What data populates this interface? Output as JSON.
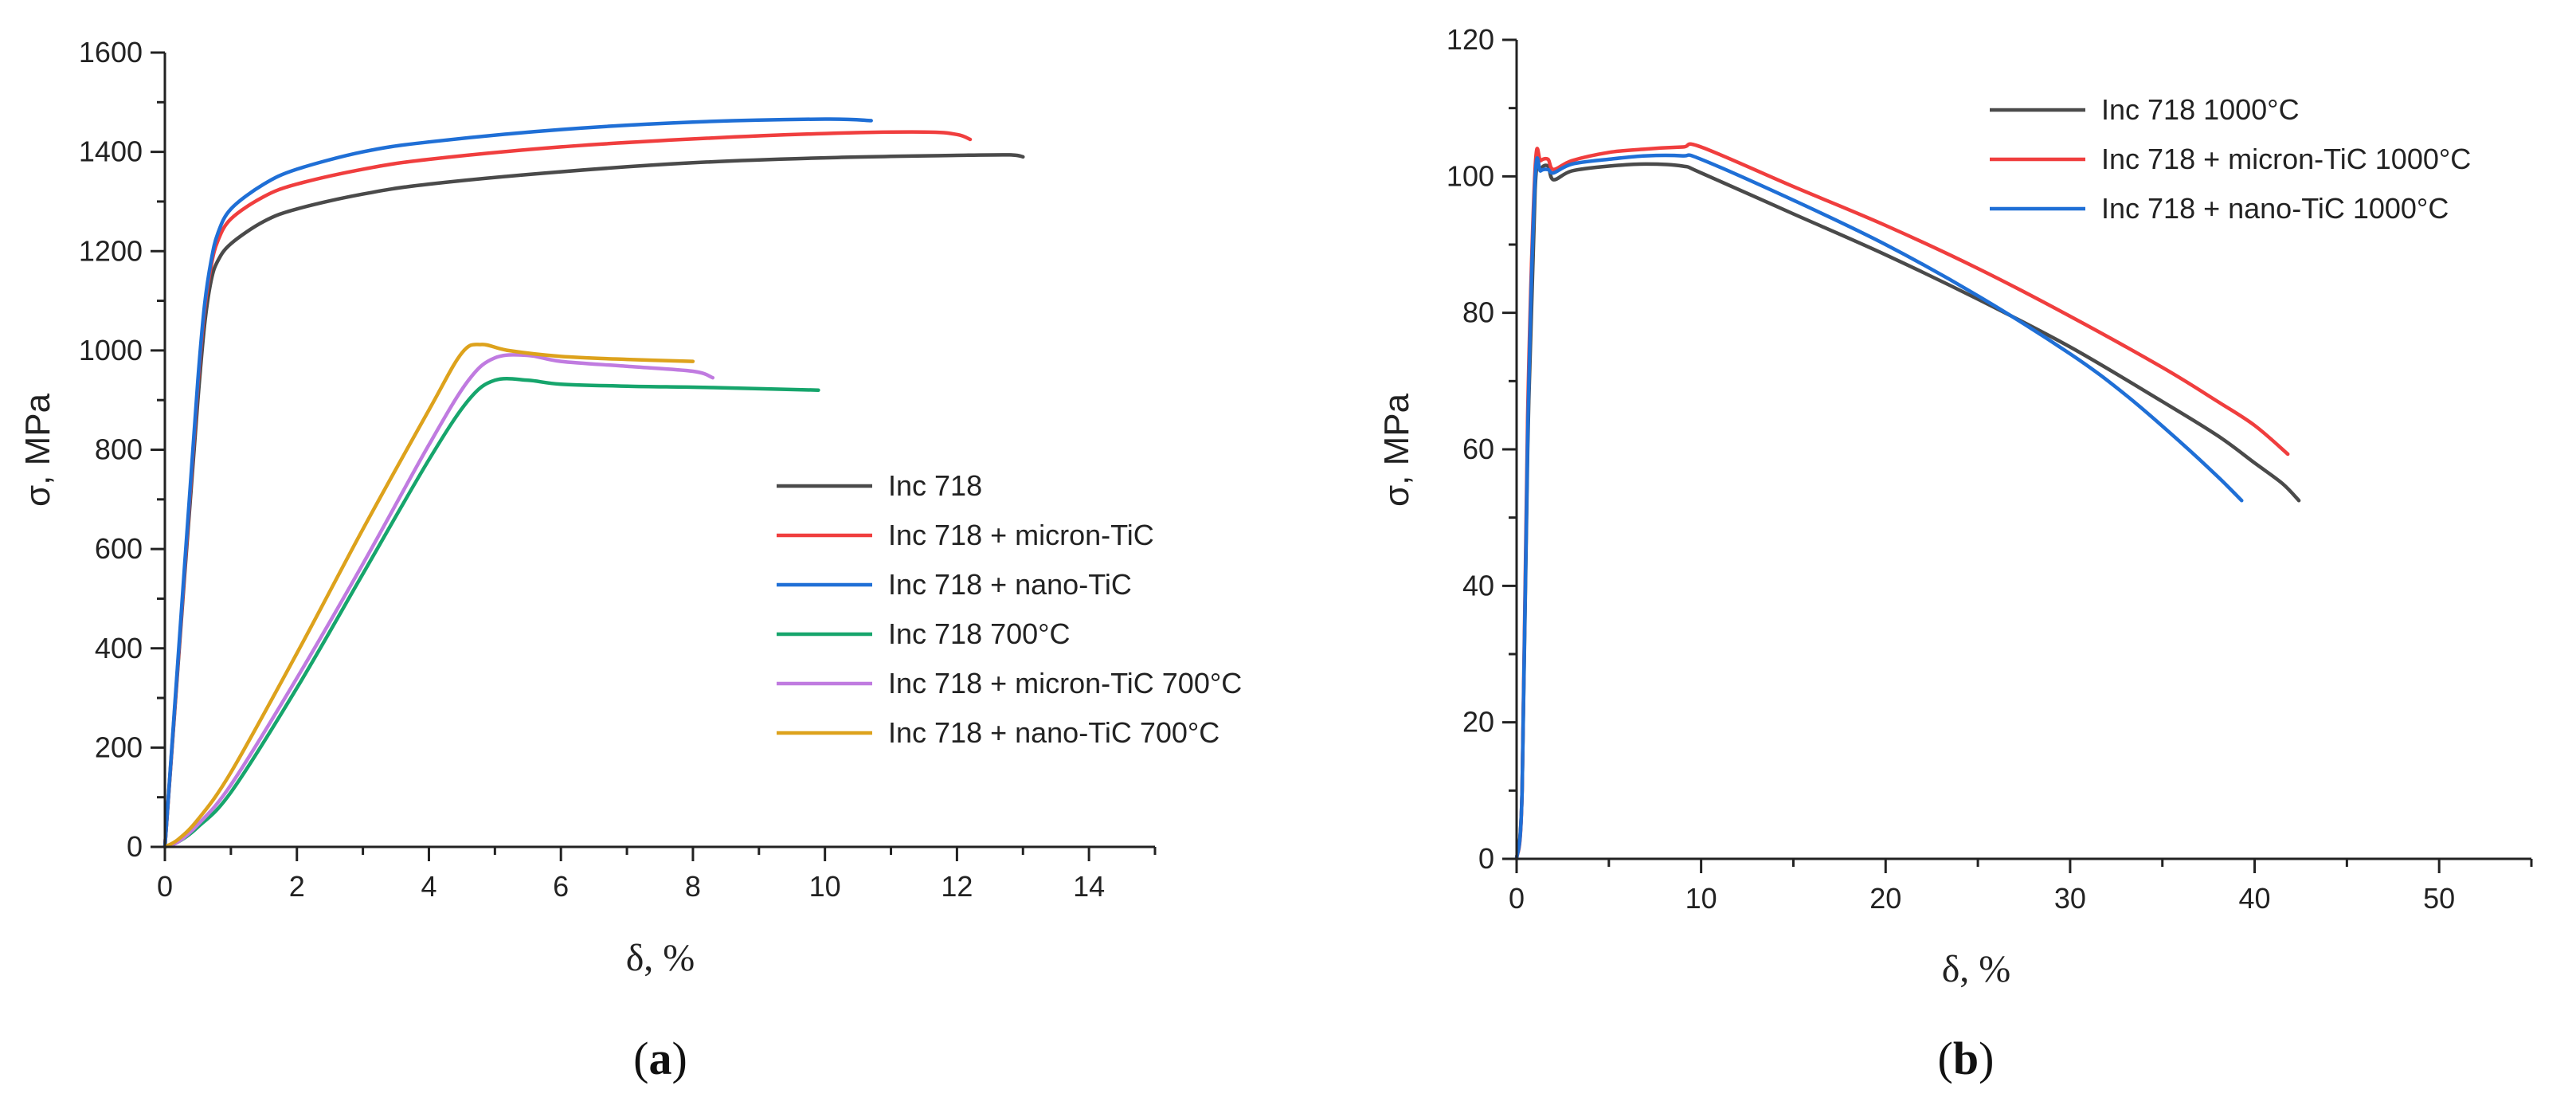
{
  "chart_data": [
    {
      "panel": "a",
      "type": "line",
      "title": "",
      "xlabel": "δ, %",
      "ylabel": "σ, MPa",
      "xlim": [
        0,
        15
      ],
      "ylim": [
        0,
        1600
      ],
      "xticks": [
        0,
        2,
        4,
        6,
        8,
        10,
        12,
        14
      ],
      "yticks": [
        0,
        200,
        400,
        600,
        800,
        1000,
        1200,
        1400,
        1600
      ],
      "legend_position": "center-right",
      "panel_label": {
        "open": "(",
        "letter": "a",
        "close": ")"
      },
      "series": [
        {
          "name": "Inc 718",
          "color": "#4a4a4a",
          "x": [
            0,
            0.3,
            0.5,
            0.6,
            0.7,
            0.8,
            1.0,
            1.5,
            2,
            3,
            4,
            6,
            8,
            10,
            12,
            12.8,
            13.0
          ],
          "y": [
            0,
            550,
            900,
            1050,
            1140,
            1180,
            1215,
            1260,
            1285,
            1315,
            1335,
            1360,
            1378,
            1388,
            1393,
            1394,
            1390
          ]
        },
        {
          "name": "Inc 718 + micron-TiC",
          "color": "#f03e3e",
          "x": [
            0,
            0.3,
            0.5,
            0.6,
            0.7,
            0.8,
            1.0,
            1.5,
            2,
            3,
            4,
            6,
            8,
            10,
            11.5,
            12.0,
            12.2
          ],
          "y": [
            0,
            560,
            930,
            1080,
            1170,
            1220,
            1265,
            1310,
            1335,
            1365,
            1385,
            1410,
            1426,
            1437,
            1440,
            1435,
            1425
          ]
        },
        {
          "name": "Inc 718 + nano-TiC",
          "color": "#1f6fd6",
          "x": [
            0,
            0.3,
            0.5,
            0.6,
            0.7,
            0.8,
            1.0,
            1.5,
            2,
            3,
            4,
            6,
            8,
            10,
            10.7
          ],
          "y": [
            0,
            570,
            940,
            1090,
            1180,
            1235,
            1285,
            1335,
            1365,
            1400,
            1420,
            1445,
            1460,
            1466,
            1463
          ]
        },
        {
          "name": "Inc 718 700°C",
          "color": "#16a56c",
          "x": [
            0,
            0.2,
            0.5,
            1.0,
            2.0,
            3.0,
            4.0,
            4.6,
            5.0,
            5.5,
            6.0,
            7.0,
            8.0,
            9.0,
            9.9
          ],
          "y": [
            0,
            10,
            40,
            110,
            320,
            550,
            780,
            900,
            940,
            940,
            932,
            928,
            926,
            923,
            920
          ]
        },
        {
          "name": "Inc 718 + micron-TiC 700°C",
          "color": "#c07be0",
          "x": [
            0,
            0.2,
            0.5,
            1.0,
            2.0,
            3.0,
            4.0,
            4.6,
            5.0,
            5.5,
            6.0,
            7.0,
            8.0,
            8.3
          ],
          "y": [
            0,
            10,
            45,
            125,
            340,
            570,
            810,
            940,
            985,
            990,
            978,
            968,
            958,
            945
          ]
        },
        {
          "name": "Inc 718 + nano-TiC 700°C",
          "color": "#dda21c",
          "x": [
            0,
            0.2,
            0.5,
            1.0,
            2.0,
            3.0,
            4.0,
            4.5,
            4.8,
            5.2,
            6.0,
            7.0,
            8.0
          ],
          "y": [
            0,
            15,
            55,
            150,
            390,
            640,
            880,
            995,
            1012,
            1000,
            988,
            982,
            978
          ]
        }
      ]
    },
    {
      "panel": "b",
      "type": "line",
      "title": "",
      "xlabel": "δ, %",
      "ylabel": "σ, MPa",
      "xlim": [
        0,
        55
      ],
      "ylim": [
        0,
        120
      ],
      "xticks": [
        0,
        10,
        20,
        30,
        40,
        50
      ],
      "yticks": [
        0,
        20,
        40,
        60,
        80,
        100,
        120
      ],
      "legend_position": "top-right",
      "panel_label": {
        "open": "(",
        "letter": "b",
        "close": ")"
      },
      "series": [
        {
          "name": "Inc 718 1000°C",
          "color": "#4a4a4a",
          "x": [
            0,
            0.3,
            0.6,
            1.0,
            1.3,
            1.7,
            2.0,
            3,
            5,
            7,
            9,
            10,
            15,
            20,
            25,
            30,
            35,
            38,
            40,
            41.5,
            42.4
          ],
          "y": [
            0,
            10,
            60,
            98,
            101,
            101.5,
            99.5,
            100.8,
            101.5,
            101.8,
            101.5,
            100.5,
            94.5,
            88.5,
            82,
            75,
            67,
            62,
            58,
            55,
            52.5
          ]
        },
        {
          "name": "Inc 718 + micron-TiC 1000°C",
          "color": "#f03e3e",
          "x": [
            0,
            0.3,
            0.6,
            1.0,
            1.3,
            1.7,
            2.0,
            3,
            5,
            7,
            9,
            10,
            15,
            20,
            25,
            30,
            35,
            38,
            40,
            41.8
          ],
          "y": [
            0,
            10,
            65,
            101,
            102.3,
            102.5,
            101,
            102.3,
            103.5,
            104,
            104.3,
            104.3,
            98.5,
            92.8,
            86.5,
            79.5,
            72,
            67,
            63.5,
            59.3
          ]
        },
        {
          "name": "Inc 718 + nano-TiC 1000°C",
          "color": "#1f6fd6",
          "x": [
            0,
            0.3,
            0.6,
            1.0,
            1.3,
            1.7,
            2.0,
            3,
            5,
            7,
            9,
            10,
            15,
            20,
            25,
            30,
            33,
            36,
            38,
            39.3
          ],
          "y": [
            0,
            10,
            62,
            99.5,
            100.8,
            101,
            100.5,
            101.8,
            102.5,
            103,
            103,
            102.5,
            96.5,
            90,
            82.5,
            74,
            68,
            61,
            56,
            52.5
          ]
        }
      ]
    }
  ]
}
